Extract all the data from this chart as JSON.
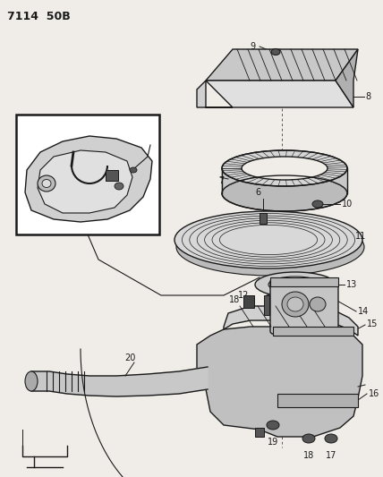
{
  "title": "7114  50B",
  "bg_color": "#f0ede8",
  "line_color": "#1a1a1a",
  "fig_width": 4.28,
  "fig_height": 5.33,
  "dpi": 100
}
